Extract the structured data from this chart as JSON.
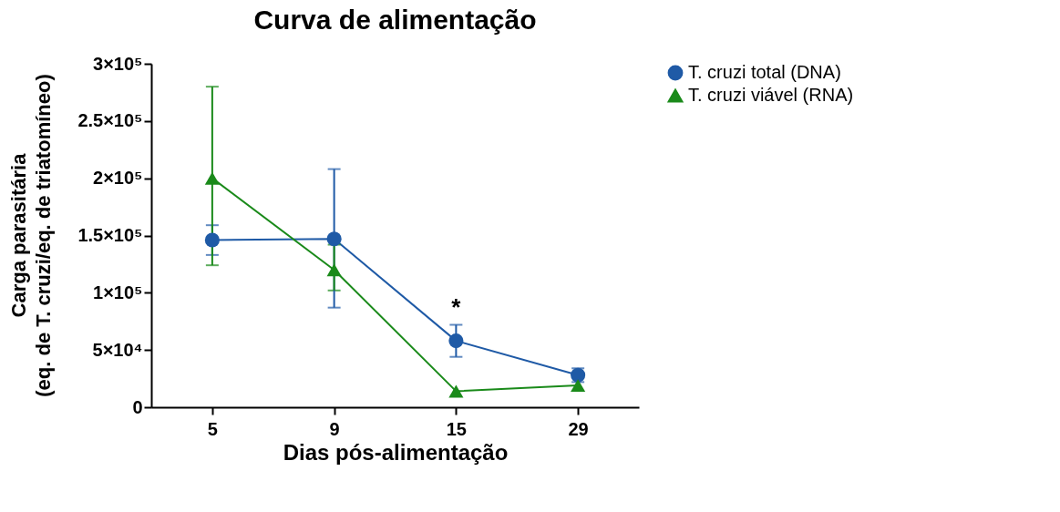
{
  "chart_data": {
    "type": "line",
    "title": "Curva de alimentação",
    "xlabel": "Dias pós-alimentação",
    "ylabel": "Carga parasitária\n(eq. de T. cruzi/eq. de triatomíneo)",
    "categories": [
      "5",
      "9",
      "15",
      "29"
    ],
    "ylim": [
      0,
      300000
    ],
    "yticks": [
      {
        "value": 0,
        "label": "0"
      },
      {
        "value": 50000,
        "label": "5×10⁴"
      },
      {
        "value": 100000,
        "label": "1×10⁵"
      },
      {
        "value": 150000,
        "label": "1.5×10⁵"
      },
      {
        "value": 200000,
        "label": "2×10⁵"
      },
      {
        "value": 250000,
        "label": "2.5×10⁵"
      },
      {
        "value": 300000,
        "label": "3×10⁵"
      }
    ],
    "series": [
      {
        "name": "T. cruzi total (DNA)",
        "color": "#1f5aa6",
        "marker": "circle",
        "values": [
          146000,
          147000,
          58000,
          28000
        ],
        "errors": [
          [
            133000,
            159000
          ],
          [
            87000,
            208000
          ],
          [
            44000,
            72000
          ],
          [
            22000,
            34000
          ]
        ]
      },
      {
        "name": "T. cruzi viável (RNA)",
        "color": "#1a8a1a",
        "marker": "triangle",
        "values": [
          200000,
          120000,
          14000,
          19000
        ],
        "errors": [
          [
            124000,
            280000
          ],
          [
            102000,
            142000
          ],
          null,
          null
        ]
      }
    ],
    "annotations": [
      "*"
    ],
    "grid": false,
    "legend": "top right"
  }
}
